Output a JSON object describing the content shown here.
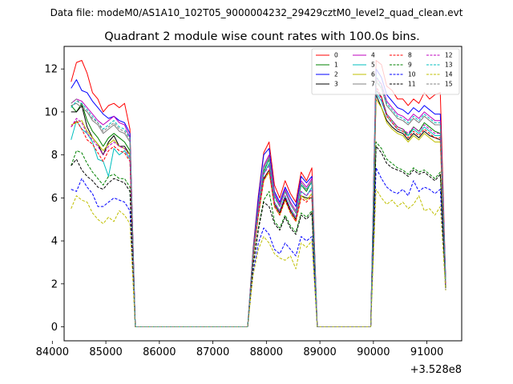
{
  "figure": {
    "suptitle": "Data file: modeM0/AS1A10_102T05_9000004232_29429cztM0_level2_quad_clean.evt"
  },
  "chart_data": {
    "type": "line",
    "title": "Quadrant 2 module wise count rates with 100.0s bins.",
    "xlabel": "",
    "ylabel": "",
    "x_offset_label": "+3.528e8",
    "xlim": [
      84220,
      91650
    ],
    "ylim": [
      -0.65,
      13.05
    ],
    "xticks": [
      84000,
      85000,
      86000,
      87000,
      88000,
      89000,
      90000,
      91000
    ],
    "xtick_labels": [
      "84000",
      "85000",
      "86000",
      "87000",
      "88000",
      "89000",
      "90000",
      "91000"
    ],
    "yticks": [
      0,
      2,
      4,
      6,
      8,
      10,
      12
    ],
    "ytick_labels": [
      "0",
      "2",
      "4",
      "6",
      "8",
      "10",
      "12"
    ],
    "legend_position": "upper right",
    "legend_columns": 4,
    "x": [
      84350,
      84450,
      84550,
      84650,
      84750,
      84850,
      84950,
      85050,
      85150,
      85250,
      85350,
      85450,
      85550,
      85650,
      85750,
      85850,
      85950,
      86050,
      86150,
      86250,
      86350,
      86450,
      86550,
      86650,
      86750,
      86850,
      86950,
      87050,
      87150,
      87250,
      87350,
      87450,
      87550,
      87650,
      87750,
      87850,
      87950,
      88050,
      88150,
      88250,
      88350,
      88450,
      88550,
      88650,
      88750,
      88850,
      88950,
      89050,
      89150,
      89250,
      89350,
      89450,
      89550,
      89650,
      89750,
      89850,
      89950,
      90050,
      90150,
      90250,
      90350,
      90450,
      90550,
      90650,
      90750,
      90850,
      90950,
      91050,
      91150,
      91250,
      91350
    ],
    "series": [
      {
        "name": "0",
        "color": "#ff0000",
        "dash": "solid",
        "values": [
          11.4,
          12.3,
          12.4,
          11.8,
          10.9,
          10.6,
          10.0,
          10.3,
          10.4,
          10.2,
          10.4,
          9.2,
          0,
          0,
          0,
          0,
          0,
          0,
          0,
          0,
          0,
          0,
          0,
          0,
          0,
          0,
          0,
          0,
          0,
          0,
          0,
          0,
          0,
          0,
          3.6,
          6.1,
          8.1,
          8.6,
          6.6,
          6.0,
          6.8,
          6.2,
          5.8,
          7.2,
          6.8,
          7.4,
          0,
          0,
          0,
          0,
          0,
          0,
          0,
          0,
          0,
          0,
          0,
          12.4,
          12.2,
          11.2,
          11.0,
          10.6,
          10.6,
          10.3,
          10.6,
          10.4,
          10.9,
          10.6,
          10.8,
          10.9,
          2.2
        ]
      },
      {
        "name": "1",
        "color": "#008000",
        "dash": "solid",
        "values": [
          10.3,
          10.0,
          10.4,
          9.6,
          9.1,
          8.8,
          8.4,
          8.8,
          9.0,
          8.8,
          8.6,
          8.2,
          0,
          0,
          0,
          0,
          0,
          0,
          0,
          0,
          0,
          0,
          0,
          0,
          0,
          0,
          0,
          0,
          0,
          0,
          0,
          0,
          0,
          0,
          3.4,
          5.6,
          7.2,
          7.8,
          6.1,
          5.6,
          6.3,
          5.7,
          5.3,
          6.6,
          6.3,
          6.8,
          0,
          0,
          0,
          0,
          0,
          0,
          0,
          0,
          0,
          0,
          0,
          11.0,
          10.7,
          9.9,
          9.6,
          9.3,
          9.2,
          8.9,
          9.3,
          9.1,
          9.5,
          9.3,
          9.1,
          9.0,
          2.0
        ]
      },
      {
        "name": "2",
        "color": "#0000ff",
        "dash": "solid",
        "values": [
          11.1,
          11.5,
          11.0,
          10.9,
          10.5,
          10.2,
          9.9,
          9.7,
          9.8,
          9.6,
          9.5,
          9.0,
          0,
          0,
          0,
          0,
          0,
          0,
          0,
          0,
          0,
          0,
          0,
          0,
          0,
          0,
          0,
          0,
          0,
          0,
          0,
          0,
          0,
          0,
          3.5,
          6.0,
          8.0,
          8.3,
          6.3,
          5.8,
          6.5,
          6.0,
          5.6,
          7.0,
          6.7,
          7.0,
          0,
          0,
          0,
          0,
          0,
          0,
          0,
          0,
          0,
          0,
          0,
          12.0,
          11.6,
          10.8,
          10.5,
          10.2,
          10.1,
          9.9,
          10.2,
          10.0,
          10.3,
          10.1,
          9.9,
          9.9,
          2.2
        ]
      },
      {
        "name": "3",
        "color": "#000000",
        "dash": "solid",
        "values": [
          10.0,
          10.0,
          10.3,
          9.3,
          8.8,
          8.5,
          8.0,
          8.6,
          8.9,
          8.4,
          8.4,
          8.0,
          0,
          0,
          0,
          0,
          0,
          0,
          0,
          0,
          0,
          0,
          0,
          0,
          0,
          0,
          0,
          0,
          0,
          0,
          0,
          0,
          0,
          0,
          3.3,
          5.2,
          6.9,
          7.3,
          5.7,
          5.3,
          6.0,
          5.4,
          5.0,
          6.1,
          6.0,
          6.0,
          0,
          0,
          0,
          0,
          0,
          0,
          0,
          0,
          0,
          0,
          0,
          10.8,
          10.2,
          9.6,
          9.3,
          9.1,
          9.0,
          8.7,
          9.0,
          8.8,
          9.1,
          8.9,
          8.8,
          8.7,
          2.0
        ]
      },
      {
        "name": "4",
        "color": "#bf00bf",
        "dash": "solid",
        "values": [
          10.4,
          10.6,
          10.5,
          10.2,
          9.9,
          9.6,
          9.4,
          9.6,
          9.8,
          9.5,
          9.4,
          8.8,
          0,
          0,
          0,
          0,
          0,
          0,
          0,
          0,
          0,
          0,
          0,
          0,
          0,
          0,
          0,
          0,
          0,
          0,
          0,
          0,
          0,
          0,
          3.4,
          5.7,
          7.5,
          8.0,
          6.2,
          5.7,
          6.4,
          5.8,
          5.4,
          6.8,
          6.5,
          6.9,
          0,
          0,
          0,
          0,
          0,
          0,
          0,
          0,
          0,
          0,
          0,
          11.6,
          11.3,
          10.5,
          10.2,
          9.9,
          9.8,
          9.6,
          9.9,
          9.7,
          10.0,
          9.8,
          9.6,
          9.6,
          2.1
        ]
      },
      {
        "name": "5",
        "color": "#00bfbf",
        "dash": "solid",
        "values": [
          8.7,
          9.6,
          9.2,
          9.0,
          8.6,
          7.8,
          7.7,
          7.0,
          8.3,
          8.0,
          8.2,
          7.8,
          0,
          0,
          0,
          0,
          0,
          0,
          0,
          0,
          0,
          0,
          0,
          0,
          0,
          0,
          0,
          0,
          0,
          0,
          0,
          0,
          0,
          0,
          3.2,
          5.3,
          7.1,
          7.6,
          5.8,
          5.4,
          6.1,
          5.5,
          5.1,
          6.3,
          6.1,
          6.5,
          0,
          0,
          0,
          0,
          0,
          0,
          0,
          0,
          0,
          0,
          0,
          10.9,
          10.5,
          9.8,
          9.5,
          9.2,
          9.1,
          8.9,
          9.2,
          9.0,
          9.3,
          9.1,
          8.9,
          8.9,
          2.0
        ]
      },
      {
        "name": "6",
        "color": "#bfbf00",
        "dash": "solid",
        "values": [
          9.4,
          9.5,
          9.6,
          9.1,
          8.8,
          8.5,
          8.2,
          8.5,
          8.7,
          8.4,
          8.3,
          8.0,
          0,
          0,
          0,
          0,
          0,
          0,
          0,
          0,
          0,
          0,
          0,
          0,
          0,
          0,
          0,
          0,
          0,
          0,
          0,
          0,
          0,
          0,
          3.2,
          5.2,
          6.8,
          7.2,
          5.6,
          5.2,
          5.9,
          5.3,
          4.9,
          6.1,
          5.9,
          6.2,
          0,
          0,
          0,
          0,
          0,
          0,
          0,
          0,
          0,
          0,
          0,
          10.6,
          10.2,
          9.5,
          9.2,
          9.0,
          8.9,
          8.6,
          8.9,
          8.7,
          9.0,
          8.8,
          8.6,
          8.6,
          1.9
        ]
      },
      {
        "name": "7",
        "color": "#808080",
        "dash": "solid",
        "values": [
          10.3,
          10.4,
          10.2,
          10.0,
          9.6,
          9.4,
          9.0,
          9.2,
          9.4,
          9.1,
          9.0,
          8.6,
          0,
          0,
          0,
          0,
          0,
          0,
          0,
          0,
          0,
          0,
          0,
          0,
          0,
          0,
          0,
          0,
          0,
          0,
          0,
          0,
          0,
          0,
          3.4,
          5.6,
          7.4,
          7.9,
          6.1,
          5.6,
          6.3,
          5.7,
          5.3,
          6.7,
          6.4,
          6.8,
          0,
          0,
          0,
          0,
          0,
          0,
          0,
          0,
          0,
          0,
          0,
          11.4,
          11.1,
          10.3,
          10.0,
          9.7,
          9.6,
          9.4,
          9.7,
          9.5,
          9.8,
          9.6,
          9.4,
          9.4,
          2.1
        ]
      },
      {
        "name": "8",
        "color": "#ff0000",
        "dash": "dashed",
        "values": [
          9.3,
          9.6,
          9.2,
          8.7,
          8.5,
          8.1,
          7.7,
          8.2,
          8.4,
          8.2,
          8.1,
          7.7,
          0,
          0,
          0,
          0,
          0,
          0,
          0,
          0,
          0,
          0,
          0,
          0,
          0,
          0,
          0,
          0,
          0,
          0,
          0,
          0,
          0,
          0,
          3.2,
          5.2,
          6.8,
          7.3,
          5.6,
          5.2,
          5.9,
          5.3,
          4.9,
          6.0,
          5.8,
          6.1,
          0,
          0,
          0,
          0,
          0,
          0,
          0,
          0,
          0,
          0,
          0,
          11.2,
          10.7,
          9.8,
          9.5,
          9.2,
          9.1,
          8.8,
          9.1,
          8.9,
          9.2,
          9.0,
          8.8,
          8.8,
          2.0
        ]
      },
      {
        "name": "9",
        "color": "#008000",
        "dash": "dashed",
        "values": [
          7.5,
          8.2,
          8.1,
          7.6,
          7.2,
          6.9,
          6.6,
          7.0,
          7.1,
          6.9,
          6.9,
          6.5,
          0,
          0,
          0,
          0,
          0,
          0,
          0,
          0,
          0,
          0,
          0,
          0,
          0,
          0,
          0,
          0,
          0,
          0,
          0,
          0,
          0,
          0,
          2.9,
          4.6,
          5.9,
          6.3,
          4.9,
          4.6,
          5.2,
          4.7,
          4.4,
          5.3,
          5.1,
          5.4,
          0,
          0,
          0,
          0,
          0,
          0,
          0,
          0,
          0,
          0,
          0,
          8.6,
          8.3,
          7.8,
          7.6,
          7.4,
          7.3,
          7.1,
          7.4,
          7.2,
          7.3,
          7.1,
          6.9,
          7.2,
          1.8
        ]
      },
      {
        "name": "10",
        "color": "#0000ff",
        "dash": "dashed",
        "values": [
          6.4,
          6.3,
          6.9,
          6.5,
          6.2,
          5.6,
          5.6,
          5.8,
          6.0,
          5.9,
          5.8,
          5.4,
          0,
          0,
          0,
          0,
          0,
          0,
          0,
          0,
          0,
          0,
          0,
          0,
          0,
          0,
          0,
          0,
          0,
          0,
          0,
          0,
          0,
          0,
          2.5,
          3.9,
          4.6,
          4.3,
          3.6,
          3.4,
          3.9,
          3.6,
          3.3,
          4.2,
          4.0,
          4.2,
          0,
          0,
          0,
          0,
          0,
          0,
          0,
          0,
          0,
          0,
          0,
          7.4,
          6.9,
          6.5,
          6.3,
          6.2,
          6.4,
          6.1,
          6.8,
          6.3,
          6.5,
          6.4,
          6.2,
          6.4,
          1.7
        ]
      },
      {
        "name": "11",
        "color": "#000000",
        "dash": "dashed",
        "values": [
          7.5,
          7.8,
          7.3,
          7.0,
          6.8,
          6.5,
          6.4,
          6.7,
          6.9,
          6.8,
          6.7,
          6.3,
          0,
          0,
          0,
          0,
          0,
          0,
          0,
          0,
          0,
          0,
          0,
          0,
          0,
          0,
          0,
          0,
          0,
          0,
          0,
          0,
          0,
          0,
          2.8,
          4.5,
          5.8,
          5.6,
          4.8,
          4.5,
          5.1,
          4.6,
          4.3,
          5.2,
          5.0,
          5.3,
          0,
          0,
          0,
          0,
          0,
          0,
          0,
          0,
          0,
          0,
          0,
          8.4,
          8.1,
          7.6,
          7.4,
          7.3,
          7.2,
          7.0,
          7.3,
          7.1,
          7.2,
          7.0,
          6.8,
          7.1,
          1.8
        ]
      },
      {
        "name": "12",
        "color": "#bf00bf",
        "dash": "dashed",
        "values": [
          9.3,
          9.7,
          9.5,
          9.0,
          8.7,
          8.4,
          8.0,
          8.4,
          8.6,
          8.4,
          8.3,
          7.9,
          0,
          0,
          0,
          0,
          0,
          0,
          0,
          0,
          0,
          0,
          0,
          0,
          0,
          0,
          0,
          0,
          0,
          0,
          0,
          0,
          0,
          0,
          3.3,
          5.4,
          7.1,
          7.5,
          5.8,
          5.4,
          6.1,
          5.5,
          5.1,
          6.3,
          6.1,
          6.4,
          0,
          0,
          0,
          0,
          0,
          0,
          0,
          0,
          0,
          0,
          0,
          11.1,
          10.6,
          9.9,
          9.6,
          9.3,
          9.2,
          9.0,
          9.3,
          9.1,
          9.4,
          9.2,
          9.0,
          9.0,
          2.0
        ]
      },
      {
        "name": "13",
        "color": "#00bfbf",
        "dash": "dashed",
        "values": [
          10.2,
          10.5,
          10.4,
          10.1,
          9.8,
          9.5,
          9.2,
          9.4,
          9.6,
          9.3,
          9.2,
          8.8,
          0,
          0,
          0,
          0,
          0,
          0,
          0,
          0,
          0,
          0,
          0,
          0,
          0,
          0,
          0,
          0,
          0,
          0,
          0,
          0,
          0,
          0,
          3.4,
          5.6,
          7.3,
          7.8,
          6.0,
          5.6,
          6.3,
          5.7,
          5.3,
          6.6,
          6.4,
          6.7,
          0,
          0,
          0,
          0,
          0,
          0,
          0,
          0,
          0,
          0,
          0,
          11.7,
          11.2,
          10.4,
          10.1,
          9.8,
          9.7,
          9.5,
          9.8,
          9.6,
          9.9,
          9.7,
          9.5,
          9.5,
          2.1
        ]
      },
      {
        "name": "14",
        "color": "#bfbf00",
        "dash": "dashed",
        "values": [
          5.5,
          6.1,
          5.9,
          5.8,
          5.3,
          5.0,
          4.8,
          5.1,
          4.9,
          5.4,
          5.2,
          4.8,
          0,
          0,
          0,
          0,
          0,
          0,
          0,
          0,
          0,
          0,
          0,
          0,
          0,
          0,
          0,
          0,
          0,
          0,
          0,
          0,
          0,
          0,
          2.4,
          3.6,
          4.2,
          3.9,
          3.4,
          3.2,
          3.1,
          3.3,
          2.7,
          3.9,
          3.7,
          4.0,
          0,
          0,
          0,
          0,
          0,
          0,
          0,
          0,
          0,
          0,
          0,
          6.4,
          6.0,
          5.7,
          5.9,
          5.6,
          5.8,
          5.5,
          5.7,
          6.1,
          5.4,
          5.5,
          5.2,
          5.6,
          1.7
        ]
      },
      {
        "name": "15",
        "color": "#808080",
        "dash": "dashed",
        "values": [
          10.4,
          10.6,
          10.3,
          10.0,
          9.7,
          9.5,
          9.1,
          9.3,
          9.5,
          9.2,
          9.1,
          8.7,
          0,
          0,
          0,
          0,
          0,
          0,
          0,
          0,
          0,
          0,
          0,
          0,
          0,
          0,
          0,
          0,
          0,
          0,
          0,
          0,
          0,
          0,
          3.4,
          5.6,
          7.4,
          7.9,
          6.1,
          5.6,
          6.3,
          5.7,
          5.3,
          6.7,
          6.4,
          6.8,
          0,
          0,
          0,
          0,
          0,
          0,
          0,
          0,
          0,
          0,
          0,
          11.5,
          11.1,
          10.3,
          10.0,
          9.7,
          9.6,
          9.4,
          9.7,
          9.5,
          9.8,
          9.6,
          9.4,
          9.4,
          2.1
        ]
      }
    ]
  }
}
